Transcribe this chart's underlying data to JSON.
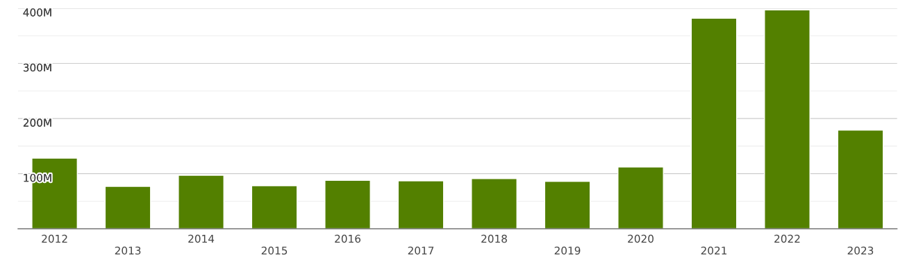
{
  "chart_data": {
    "type": "bar",
    "categories": [
      "2012",
      "2013",
      "2014",
      "2015",
      "2016",
      "2017",
      "2018",
      "2019",
      "2020",
      "2021",
      "2022",
      "2023"
    ],
    "values": [
      128,
      77,
      97,
      78,
      88,
      87,
      91,
      86,
      112,
      382,
      397,
      179
    ],
    "color": "#538000",
    "ylim": [
      0,
      400
    ],
    "yticks": [
      {
        "value": 50,
        "label": null
      },
      {
        "value": 100,
        "label": "100M"
      },
      {
        "value": 150,
        "label": null
      },
      {
        "value": 200,
        "label": "200M"
      },
      {
        "value": 250,
        "label": null
      },
      {
        "value": 300,
        "label": "300M"
      },
      {
        "value": 350,
        "label": null
      },
      {
        "value": 400,
        "label": "400M"
      }
    ],
    "grid": "y"
  }
}
